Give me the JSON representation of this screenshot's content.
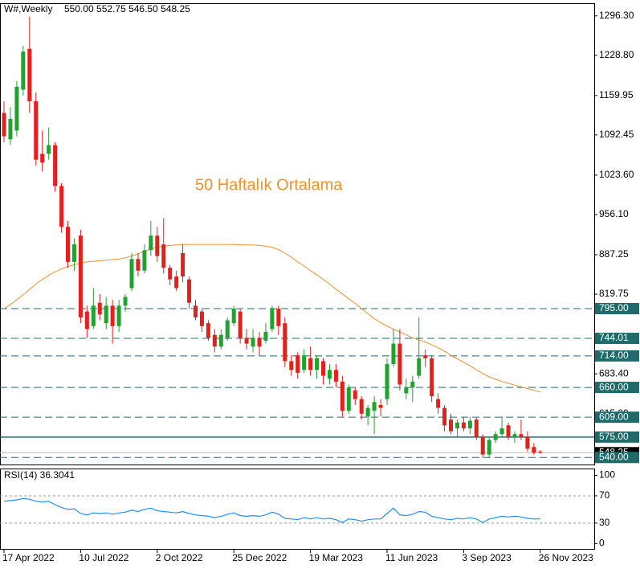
{
  "chart_data": {
    "type": "candlestick",
    "title": "W#,Weekly",
    "subtitle": "550.00 552.75 546.50 548.25",
    "annotation": "50 Haftalık Ortalama",
    "x": [
      "17 Apr 2022",
      null,
      null,
      null,
      null,
      null,
      null,
      null,
      null,
      null,
      null,
      null,
      "10 Jul 2022",
      null,
      null,
      null,
      null,
      null,
      null,
      null,
      null,
      null,
      null,
      null,
      "2 Oct 2022",
      null,
      null,
      null,
      null,
      null,
      null,
      null,
      null,
      null,
      null,
      null,
      "25 Dec 2022",
      null,
      null,
      null,
      null,
      null,
      null,
      null,
      null,
      null,
      null,
      null,
      "19 Mar 2023",
      null,
      null,
      null,
      null,
      null,
      null,
      null,
      null,
      null,
      null,
      null,
      "11 Jun 2023",
      null,
      null,
      null,
      null,
      null,
      null,
      null,
      null,
      null,
      null,
      null,
      "3 Sep 2023",
      null,
      null,
      null,
      null,
      null,
      null,
      null,
      null,
      null,
      null,
      null,
      "26 Nov 2023"
    ],
    "open": [
      1130,
      1085,
      1100,
      1170,
      1240,
      1150,
      1060,
      1060,
      1075,
      1005,
      935,
      875,
      920,
      790,
      765,
      805,
      770,
      800,
      765,
      800,
      830,
      880,
      860,
      895,
      920,
      905,
      865,
      850,
      890,
      845,
      800,
      790,
      770,
      750,
      730,
      745,
      770,
      790,
      745,
      730,
      745,
      740,
      760,
      795,
      770,
      705,
      715,
      690,
      710,
      690,
      705,
      675,
      690,
      670,
      620,
      655,
      640,
      610,
      620,
      630,
      640,
      700,
      735,
      650,
      660,
      680,
      715,
      710,
      640,
      625,
      605,
      590,
      600,
      590,
      605,
      575,
      545,
      570,
      580,
      595,
      575,
      580,
      575,
      558,
      550
    ],
    "high": [
      1150,
      1140,
      1185,
      1245,
      1295,
      1165,
      1100,
      1105,
      1080,
      1010,
      945,
      915,
      930,
      800,
      830,
      820,
      815,
      810,
      810,
      820,
      890,
      890,
      905,
      945,
      935,
      950,
      870,
      860,
      905,
      850,
      810,
      795,
      775,
      760,
      760,
      780,
      800,
      795,
      760,
      760,
      755,
      770,
      800,
      800,
      780,
      715,
      720,
      725,
      730,
      715,
      710,
      700,
      700,
      680,
      665,
      660,
      645,
      630,
      645,
      640,
      710,
      760,
      760,
      675,
      680,
      780,
      725,
      715,
      650,
      630,
      615,
      605,
      610,
      610,
      608,
      580,
      575,
      585,
      610,
      600,
      585,
      605,
      585,
      565,
      552.75
    ],
    "low": [
      1080,
      1075,
      1090,
      1160,
      1130,
      1040,
      1030,
      1050,
      995,
      925,
      865,
      860,
      770,
      745,
      760,
      775,
      760,
      735,
      755,
      790,
      825,
      850,
      855,
      885,
      875,
      855,
      835,
      825,
      840,
      795,
      775,
      755,
      740,
      720,
      725,
      740,
      765,
      735,
      725,
      720,
      715,
      735,
      755,
      750,
      695,
      680,
      675,
      685,
      680,
      675,
      665,
      665,
      660,
      610,
      615,
      630,
      605,
      595,
      580,
      610,
      630,
      695,
      655,
      640,
      635,
      675,
      695,
      635,
      615,
      585,
      580,
      575,
      585,
      580,
      570,
      540,
      540,
      565,
      575,
      570,
      565,
      570,
      550,
      545,
      546.5
    ],
    "close": [
      1090,
      1120,
      1175,
      1235,
      1150,
      1050,
      1045,
      1075,
      1005,
      935,
      875,
      905,
      780,
      760,
      800,
      785,
      800,
      765,
      800,
      815,
      880,
      860,
      895,
      920,
      885,
      865,
      845,
      830,
      850,
      805,
      780,
      765,
      745,
      730,
      750,
      775,
      795,
      745,
      735,
      745,
      730,
      755,
      795,
      765,
      705,
      690,
      685,
      715,
      690,
      710,
      680,
      690,
      670,
      620,
      660,
      640,
      615,
      625,
      635,
      625,
      700,
      735,
      665,
      660,
      670,
      710,
      710,
      645,
      625,
      595,
      585,
      600,
      590,
      603,
      575,
      545,
      570,
      580,
      590,
      575,
      580,
      575,
      555,
      548,
      548.25
    ],
    "up_color": "#1fa32e",
    "down_color": "#e3211c",
    "ma": {
      "color": "#f0922b",
      "values": [
        795,
        802,
        810,
        819,
        828,
        837,
        845,
        852,
        858,
        863,
        867,
        870,
        873,
        875,
        876,
        877,
        878,
        879,
        880,
        882,
        885,
        889,
        893,
        897,
        900,
        902,
        903,
        904,
        905,
        905,
        905,
        905,
        905,
        905,
        905,
        905,
        905,
        904,
        904,
        904,
        903,
        902,
        900,
        896,
        890,
        883,
        875,
        868,
        860,
        853,
        845,
        837,
        828,
        820,
        812,
        804,
        795,
        786,
        778,
        771,
        765,
        760,
        755,
        750,
        745,
        741,
        738,
        733,
        728,
        722,
        715,
        709,
        703,
        697,
        690,
        684,
        678,
        674,
        670,
        667,
        664,
        661,
        658,
        655,
        652
      ]
    },
    "ylim": [
      528,
      1318
    ],
    "yticks": [
      {
        "value": 1296.3,
        "label": "1296.30"
      },
      {
        "value": 1228.8,
        "label": "1228.80"
      },
      {
        "value": 1159.95,
        "label": "1159.95"
      },
      {
        "value": 1092.45,
        "label": "1092.45"
      },
      {
        "value": 1023.6,
        "label": "1023.60"
      },
      {
        "value": 956.1,
        "label": "956.10"
      },
      {
        "value": 887.25,
        "label": "887.25"
      },
      {
        "value": 819.75,
        "label": "819.75"
      },
      {
        "value": 683.4,
        "label": "683.40"
      },
      {
        "value": 615,
        "label": "615.00"
      }
    ],
    "levels": [
      {
        "value": 795,
        "label": "795.00"
      },
      {
        "value": 744.01,
        "label": "744.01"
      },
      {
        "value": 714,
        "label": "714.00"
      },
      {
        "value": 660,
        "label": "660.00"
      },
      {
        "value": 609,
        "label": "609.00"
      },
      {
        "value": 575,
        "label": "575.00",
        "solid": true
      },
      {
        "value": 540,
        "label": "540.00"
      }
    ],
    "level_color": "#1f6b6b",
    "current_price": {
      "value": 548.25,
      "label": "548.25"
    },
    "rsi": {
      "label": "RSI(14) 36.3041",
      "color": "#1e90ff",
      "ylim": [
        -9,
        110
      ],
      "yticks": [
        100,
        70,
        30,
        0
      ],
      "grid": [
        70,
        30
      ],
      "values": [
        62,
        63,
        64,
        66,
        65,
        62,
        61,
        62,
        57,
        53,
        50,
        51,
        44,
        42,
        45,
        44,
        45,
        43,
        45,
        46,
        49,
        47,
        50,
        52,
        48,
        47,
        46,
        45,
        47,
        44,
        42,
        41,
        40,
        38,
        40,
        43,
        45,
        41,
        40,
        41,
        40,
        42,
        46,
        43,
        37,
        36,
        35,
        38,
        36,
        38,
        36,
        37,
        35,
        31,
        36,
        35,
        33,
        35,
        36,
        36,
        44,
        52,
        42,
        41,
        43,
        47,
        46,
        40,
        38,
        36,
        35,
        37,
        36,
        38,
        36,
        31,
        36,
        38,
        40,
        39,
        40,
        39,
        37,
        36,
        36.3041
      ]
    }
  }
}
